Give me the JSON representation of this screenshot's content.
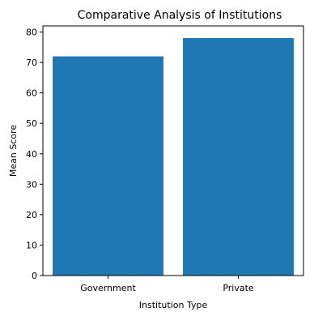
{
  "chart_data": {
    "type": "bar",
    "title": "Comparative Analysis of Institutions",
    "xlabel": "Institution Type",
    "ylabel": "Mean Score",
    "categories": [
      "Government",
      "Private"
    ],
    "values": [
      72,
      78
    ],
    "ylim": [
      0,
      82
    ],
    "yticks": [
      0,
      10,
      20,
      30,
      40,
      50,
      60,
      70,
      80
    ],
    "bar_color": "#1f77b4",
    "grid": false,
    "legend": "none"
  }
}
